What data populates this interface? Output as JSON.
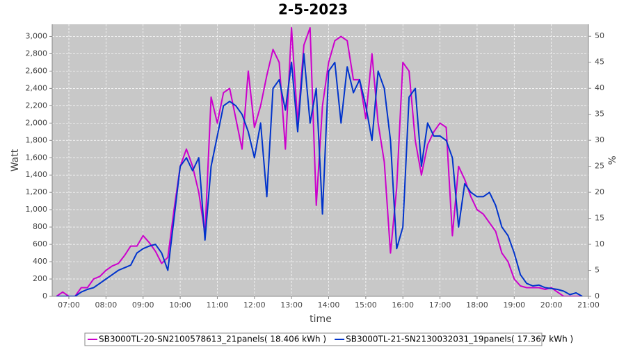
{
  "chart_data": {
    "type": "line",
    "title": "2-5-2023",
    "x_label": "time",
    "y_label": "Watt",
    "y2_label": "%",
    "x": [
      "06:40",
      "06:50",
      "07:00",
      "07:10",
      "07:20",
      "07:30",
      "07:40",
      "07:50",
      "08:00",
      "08:10",
      "08:20",
      "08:30",
      "08:40",
      "08:50",
      "09:00",
      "09:10",
      "09:20",
      "09:30",
      "09:40",
      "09:50",
      "10:00",
      "10:10",
      "10:20",
      "10:30",
      "10:40",
      "10:50",
      "11:00",
      "11:10",
      "11:20",
      "11:30",
      "11:40",
      "11:50",
      "12:00",
      "12:10",
      "12:20",
      "12:30",
      "12:40",
      "12:50",
      "13:00",
      "13:10",
      "13:20",
      "13:30",
      "13:40",
      "13:50",
      "14:00",
      "14:10",
      "14:20",
      "14:30",
      "14:40",
      "14:50",
      "15:00",
      "15:10",
      "15:20",
      "15:30",
      "15:40",
      "15:50",
      "16:00",
      "16:10",
      "16:20",
      "16:30",
      "16:40",
      "16:50",
      "17:00",
      "17:10",
      "17:20",
      "17:30",
      "17:40",
      "17:50",
      "18:00",
      "18:10",
      "18:20",
      "18:30",
      "18:40",
      "18:50",
      "19:00",
      "19:10",
      "19:20",
      "19:30",
      "19:40",
      "19:50",
      "20:00",
      "20:10",
      "20:20",
      "20:30",
      "20:40",
      "20:50"
    ],
    "series": [
      {
        "name": "SB3000TL-20-SN2100578613_21panels( 18.406 kWh )",
        "color": "#cc00cc",
        "values": [
          0,
          50,
          0,
          0,
          100,
          100,
          200,
          230,
          300,
          350,
          380,
          470,
          580,
          580,
          700,
          620,
          520,
          380,
          450,
          1000,
          1500,
          1700,
          1500,
          1200,
          720,
          2300,
          2000,
          2350,
          2400,
          2050,
          1700,
          2600,
          1950,
          2200,
          2550,
          2850,
          2700,
          1700,
          3100,
          2000,
          2900,
          3100,
          1050,
          2200,
          2700,
          2950,
          3000,
          2950,
          2500,
          2500,
          2050,
          2800,
          2000,
          1550,
          500,
          1250,
          2700,
          2600,
          1800,
          1400,
          1750,
          1900,
          2000,
          1950,
          700,
          1500,
          1350,
          1150,
          1000,
          950,
          850,
          750,
          500,
          400,
          200,
          120,
          100,
          100,
          100,
          80,
          100,
          50,
          0,
          0,
          0,
          0
        ]
      },
      {
        "name": "SB3000TL-21-SN2130032031_19panels( 17.367 kWh )",
        "color": "#0033cc",
        "values": [
          0,
          0,
          0,
          0,
          50,
          80,
          100,
          150,
          200,
          250,
          300,
          330,
          360,
          500,
          550,
          580,
          600,
          500,
          300,
          900,
          1500,
          1600,
          1450,
          1600,
          650,
          1500,
          1850,
          2200,
          2250,
          2200,
          2100,
          1900,
          1600,
          2000,
          1150,
          2400,
          2500,
          2150,
          2700,
          1900,
          2800,
          2000,
          2400,
          950,
          2600,
          2700,
          2000,
          2650,
          2350,
          2500,
          2200,
          1800,
          2600,
          2400,
          1800,
          550,
          800,
          2300,
          2400,
          1500,
          2000,
          1850,
          1850,
          1800,
          1600,
          800,
          1300,
          1200,
          1150,
          1150,
          1200,
          1050,
          800,
          700,
          500,
          250,
          150,
          120,
          130,
          100,
          90,
          80,
          60,
          20,
          40,
          0
        ]
      }
    ],
    "xlim": [
      "06:33",
      "21:00"
    ],
    "xticks": [
      "07:00",
      "08:00",
      "09:00",
      "10:00",
      "11:00",
      "12:00",
      "13:00",
      "14:00",
      "15:00",
      "16:00",
      "17:00",
      "18:00",
      "19:00",
      "20:00",
      "21:00"
    ],
    "ylim": [
      0,
      3140
    ],
    "yticks": [
      0,
      200,
      400,
      600,
      800,
      {
        "value": 1000,
        "label": "1,000"
      },
      {
        "value": 1200,
        "label": "1,200"
      },
      {
        "value": 1400,
        "label": "1,400"
      },
      {
        "value": 1600,
        "label": "1,600"
      },
      {
        "value": 1800,
        "label": "1,800"
      },
      {
        "value": 2000,
        "label": "2,000"
      },
      {
        "value": 2200,
        "label": "2,200"
      },
      {
        "value": 2400,
        "label": "2,400"
      },
      {
        "value": 2600,
        "label": "2,600"
      },
      {
        "value": 2800,
        "label": "2,800"
      },
      {
        "value": 3000,
        "label": "3,000"
      }
    ],
    "y2lim": [
      0,
      52.3
    ],
    "y2ticks": [
      0,
      5,
      10,
      15,
      20,
      25,
      30,
      35,
      40,
      45,
      50
    ],
    "grid": true,
    "plot_background": "#c8c8c8"
  }
}
